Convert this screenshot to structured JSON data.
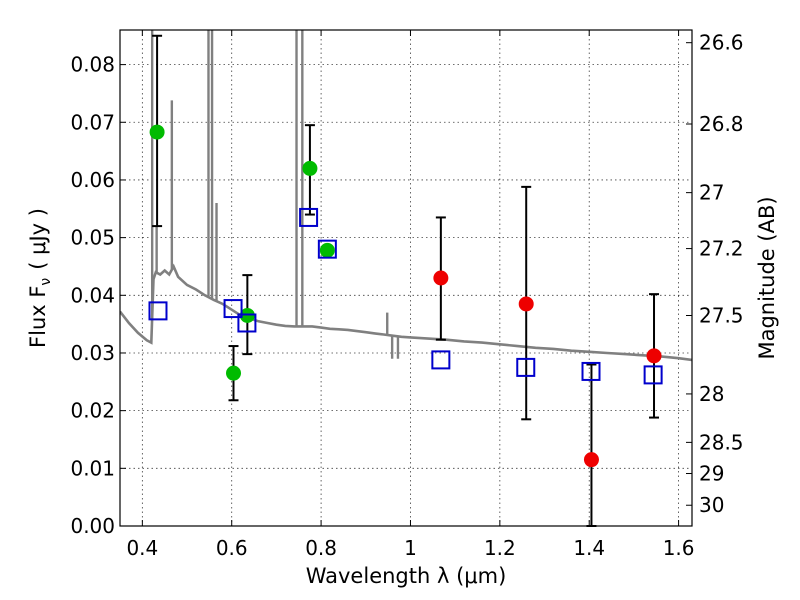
{
  "chart_data": {
    "type": "scatter",
    "xlabel": "Wavelength  λ (μm)",
    "ylabel": "Flux  F",
    "ylabel_sub": "ν",
    "ylabel_unit": "( μJy )",
    "y2label": "Magnitude (AB)",
    "xlim": [
      0.35,
      1.63
    ],
    "ylim": [
      0.0,
      0.086
    ],
    "grid": true,
    "x_ticks": [
      {
        "value": 0.4,
        "label": "0.4"
      },
      {
        "value": 0.6,
        "label": "0.6"
      },
      {
        "value": 0.8,
        "label": "0.8"
      },
      {
        "value": 1.0,
        "label": "1"
      },
      {
        "value": 1.2,
        "label": "1.2"
      },
      {
        "value": 1.4,
        "label": "1.4"
      },
      {
        "value": 1.6,
        "label": "1.6"
      }
    ],
    "y_ticks": [
      {
        "value": 0.0,
        "label": "0.00"
      },
      {
        "value": 0.01,
        "label": "0.01"
      },
      {
        "value": 0.02,
        "label": "0.02"
      },
      {
        "value": 0.03,
        "label": "0.03"
      },
      {
        "value": 0.04,
        "label": "0.04"
      },
      {
        "value": 0.05,
        "label": "0.05"
      },
      {
        "value": 0.06,
        "label": "0.06"
      },
      {
        "value": 0.07,
        "label": "0.07"
      },
      {
        "value": 0.08,
        "label": "0.08"
      }
    ],
    "y2_ticks": [
      {
        "flux": 0.0838,
        "label": "26.6"
      },
      {
        "flux": 0.0697,
        "label": "26.8"
      },
      {
        "flux": 0.0578,
        "label": "27"
      },
      {
        "flux": 0.0481,
        "label": "27.2"
      },
      {
        "flux": 0.0365,
        "label": "27.5"
      },
      {
        "flux": 0.0229,
        "label": "28"
      },
      {
        "flux": 0.0145,
        "label": "28.5"
      },
      {
        "flux": 0.0091,
        "label": "29"
      },
      {
        "flux": 0.0036,
        "label": "30"
      }
    ],
    "colors": {
      "green": "#00bb00",
      "red": "#ee0000",
      "blue": "#0000cc",
      "model": "#808080",
      "errorbar": "#000000"
    },
    "model_spectrum": [
      [
        0.35,
        0.0372
      ],
      [
        0.37,
        0.0352
      ],
      [
        0.39,
        0.0335
      ],
      [
        0.41,
        0.0322
      ],
      [
        0.42,
        0.0318
      ],
      [
        0.425,
        0.0428
      ],
      [
        0.43,
        0.044
      ],
      [
        0.44,
        0.0436
      ],
      [
        0.45,
        0.0443
      ],
      [
        0.46,
        0.0436
      ],
      [
        0.47,
        0.045
      ],
      [
        0.48,
        0.0432
      ],
      [
        0.5,
        0.0418
      ],
      [
        0.52,
        0.041
      ],
      [
        0.54,
        0.04
      ],
      [
        0.56,
        0.0392
      ],
      [
        0.58,
        0.0385
      ],
      [
        0.6,
        0.0375
      ],
      [
        0.62,
        0.0365
      ],
      [
        0.64,
        0.036
      ],
      [
        0.66,
        0.0355
      ],
      [
        0.68,
        0.0352
      ],
      [
        0.7,
        0.0349
      ],
      [
        0.72,
        0.0347
      ],
      [
        0.74,
        0.0346
      ],
      [
        0.76,
        0.0346
      ],
      [
        0.78,
        0.0346
      ],
      [
        0.8,
        0.0344
      ],
      [
        0.82,
        0.0342
      ],
      [
        0.84,
        0.0341
      ],
      [
        0.86,
        0.034
      ],
      [
        0.88,
        0.0338
      ],
      [
        0.9,
        0.0336
      ],
      [
        0.92,
        0.0334
      ],
      [
        0.94,
        0.0332
      ],
      [
        0.96,
        0.033
      ],
      [
        0.98,
        0.0328
      ],
      [
        1.0,
        0.0327
      ],
      [
        1.04,
        0.0325
      ],
      [
        1.08,
        0.0323
      ],
      [
        1.12,
        0.032
      ],
      [
        1.16,
        0.0318
      ],
      [
        1.2,
        0.0315
      ],
      [
        1.24,
        0.0312
      ],
      [
        1.28,
        0.0309
      ],
      [
        1.32,
        0.0307
      ],
      [
        1.36,
        0.0304
      ],
      [
        1.4,
        0.0302
      ],
      [
        1.44,
        0.03
      ],
      [
        1.48,
        0.0298
      ],
      [
        1.52,
        0.0296
      ],
      [
        1.56,
        0.0294
      ],
      [
        1.6,
        0.0291
      ],
      [
        1.63,
        0.0288
      ]
    ],
    "emission_lines": [
      {
        "x": 0.422,
        "peak": 0.086
      },
      {
        "x": 0.432,
        "peak": 0.052
      },
      {
        "x": 0.466,
        "peak": 0.0738
      },
      {
        "x": 0.548,
        "peak": 0.086
      },
      {
        "x": 0.556,
        "peak": 0.086
      },
      {
        "x": 0.566,
        "peak": 0.056
      },
      {
        "x": 0.745,
        "peak": 0.086
      },
      {
        "x": 0.758,
        "peak": 0.086
      },
      {
        "x": 0.948,
        "peak": 0.037
      },
      {
        "x": 0.975,
        "peak": 0.033
      }
    ],
    "absorption_lines": [
      {
        "x": 0.959,
        "trough": 0.029
      },
      {
        "x": 0.972,
        "trough": 0.029
      }
    ],
    "series": [
      {
        "marker": "filled-circle",
        "color": "#00bb00",
        "points": [
          {
            "x": 0.433,
            "y": 0.0683,
            "yerr_low": 0.052,
            "yerr_high": 0.085
          },
          {
            "x": 0.604,
            "y": 0.0265,
            "yerr_low": 0.0218,
            "yerr_high": 0.0312
          },
          {
            "x": 0.635,
            "y": 0.0365,
            "yerr_low": 0.0298,
            "yerr_high": 0.0435
          },
          {
            "x": 0.775,
            "y": 0.062,
            "yerr_low": 0.054,
            "yerr_high": 0.0695
          },
          {
            "x": 0.814,
            "y": 0.0478
          }
        ]
      },
      {
        "marker": "filled-circle",
        "color": "#ee0000",
        "points": [
          {
            "x": 1.068,
            "y": 0.043,
            "yerr_low": 0.0323,
            "yerr_high": 0.0535
          },
          {
            "x": 1.259,
            "y": 0.0385,
            "yerr_low": 0.0185,
            "yerr_high": 0.0588
          },
          {
            "x": 1.405,
            "y": 0.0115,
            "yerr_low": 0.0,
            "yerr_high": 0.028
          },
          {
            "x": 1.545,
            "y": 0.0295,
            "yerr_low": 0.0188,
            "yerr_high": 0.0402
          }
        ]
      },
      {
        "marker": "open-square",
        "color": "#0000cc",
        "points": [
          {
            "x": 0.435,
            "y": 0.0373
          },
          {
            "x": 0.603,
            "y": 0.0377
          },
          {
            "x": 0.634,
            "y": 0.0352
          },
          {
            "x": 0.772,
            "y": 0.0535
          },
          {
            "x": 0.814,
            "y": 0.048
          },
          {
            "x": 1.068,
            "y": 0.0288
          },
          {
            "x": 1.258,
            "y": 0.0275
          },
          {
            "x": 1.404,
            "y": 0.0268
          },
          {
            "x": 1.543,
            "y": 0.0262
          }
        ]
      }
    ]
  }
}
